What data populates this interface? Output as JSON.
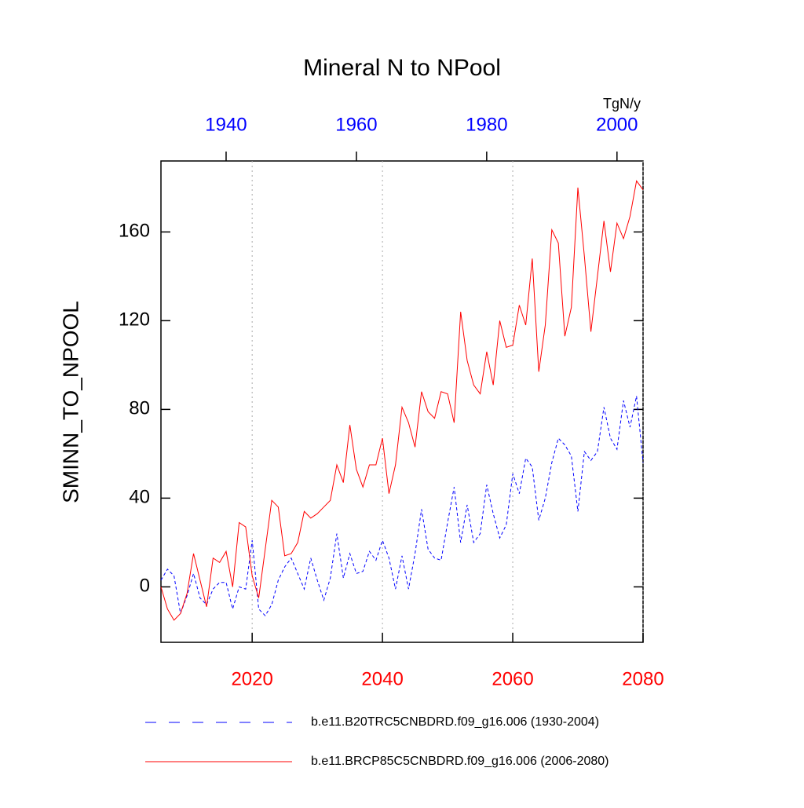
{
  "chart_data": {
    "type": "line",
    "title": "Mineral N to NPool",
    "y_label": "SMINN_TO_NPOOL",
    "units": "TgN/y",
    "xlim": [
      2006,
      2080
    ],
    "xticks": [
      2020,
      2040,
      2060,
      2080
    ],
    "xtick_color": "#ff0000",
    "x2lim": [
      1930,
      2004
    ],
    "x2ticks": [
      1940,
      1960,
      1980,
      2000
    ],
    "x2tick_color": "#0000ff",
    "ylim": [
      -25,
      192
    ],
    "yticks": [
      0,
      40,
      80,
      120,
      160
    ],
    "grid": "x",
    "series": [
      {
        "name": "b.e11.B20TRC5CNBDRD.f09_g16.006 (1930-2004)",
        "color": "#0000ff",
        "dashed": true,
        "axis": "x2",
        "x": [
          1930,
          1931,
          1932,
          1933,
          1934,
          1935,
          1936,
          1937,
          1938,
          1939,
          1940,
          1941,
          1942,
          1943,
          1944,
          1945,
          1946,
          1947,
          1948,
          1949,
          1950,
          1951,
          1952,
          1953,
          1954,
          1955,
          1956,
          1957,
          1958,
          1959,
          1960,
          1961,
          1962,
          1963,
          1964,
          1965,
          1966,
          1967,
          1968,
          1969,
          1970,
          1971,
          1972,
          1973,
          1974,
          1975,
          1976,
          1977,
          1978,
          1979,
          1980,
          1981,
          1982,
          1983,
          1984,
          1985,
          1986,
          1987,
          1988,
          1989,
          1990,
          1991,
          1992,
          1993,
          1994,
          1995,
          1996,
          1997,
          1998,
          1999,
          2000,
          2001,
          2002,
          2003,
          2004
        ],
        "values": [
          3,
          8,
          5,
          -12,
          -4,
          6,
          -5,
          -8,
          -1,
          2,
          2,
          -10,
          0,
          -1,
          21,
          -10,
          -13,
          -8,
          3,
          9,
          13,
          6,
          -1,
          13,
          3,
          -6,
          4,
          24,
          4,
          15,
          6,
          7,
          16,
          12,
          21,
          13,
          -1,
          14,
          -1,
          15,
          35,
          17,
          13,
          12,
          29,
          45,
          20,
          37,
          20,
          24,
          46,
          33,
          22,
          28,
          51,
          42,
          58,
          54,
          30,
          40,
          56,
          67,
          64,
          59,
          34,
          61,
          57,
          61,
          81,
          67,
          62,
          84,
          72,
          86,
          56
        ]
      },
      {
        "name": "b.e11.BRCP85C5CNBDRD.f09_g16.006 (2006-2080)",
        "color": "#ff0000",
        "dashed": false,
        "axis": "x",
        "x": [
          2006,
          2007,
          2008,
          2009,
          2010,
          2011,
          2012,
          2013,
          2014,
          2015,
          2016,
          2017,
          2018,
          2019,
          2020,
          2021,
          2022,
          2023,
          2024,
          2025,
          2026,
          2027,
          2028,
          2029,
          2030,
          2031,
          2032,
          2033,
          2034,
          2035,
          2036,
          2037,
          2038,
          2039,
          2040,
          2041,
          2042,
          2043,
          2044,
          2045,
          2046,
          2047,
          2048,
          2049,
          2050,
          2051,
          2052,
          2053,
          2054,
          2055,
          2056,
          2057,
          2058,
          2059,
          2060,
          2061,
          2062,
          2063,
          2064,
          2065,
          2066,
          2067,
          2068,
          2069,
          2070,
          2071,
          2072,
          2073,
          2074,
          2075,
          2076,
          2077,
          2078,
          2079,
          2080
        ],
        "values": [
          0,
          -10,
          -15,
          -12,
          -3,
          15,
          3,
          -9,
          13,
          11,
          16,
          0,
          29,
          27,
          5,
          -5,
          17,
          39,
          36,
          14,
          15,
          20,
          34,
          31,
          33,
          36,
          39,
          55,
          47,
          73,
          53,
          45,
          55,
          55,
          67,
          42,
          55,
          81,
          74,
          63,
          88,
          79,
          76,
          88,
          87,
          74,
          124,
          102,
          91,
          87,
          106,
          91,
          120,
          108,
          109,
          127,
          118,
          148,
          97,
          118,
          161,
          155,
          113,
          126,
          180,
          149,
          115,
          140,
          165,
          142,
          164,
          157,
          167,
          183,
          179
        ]
      }
    ]
  }
}
